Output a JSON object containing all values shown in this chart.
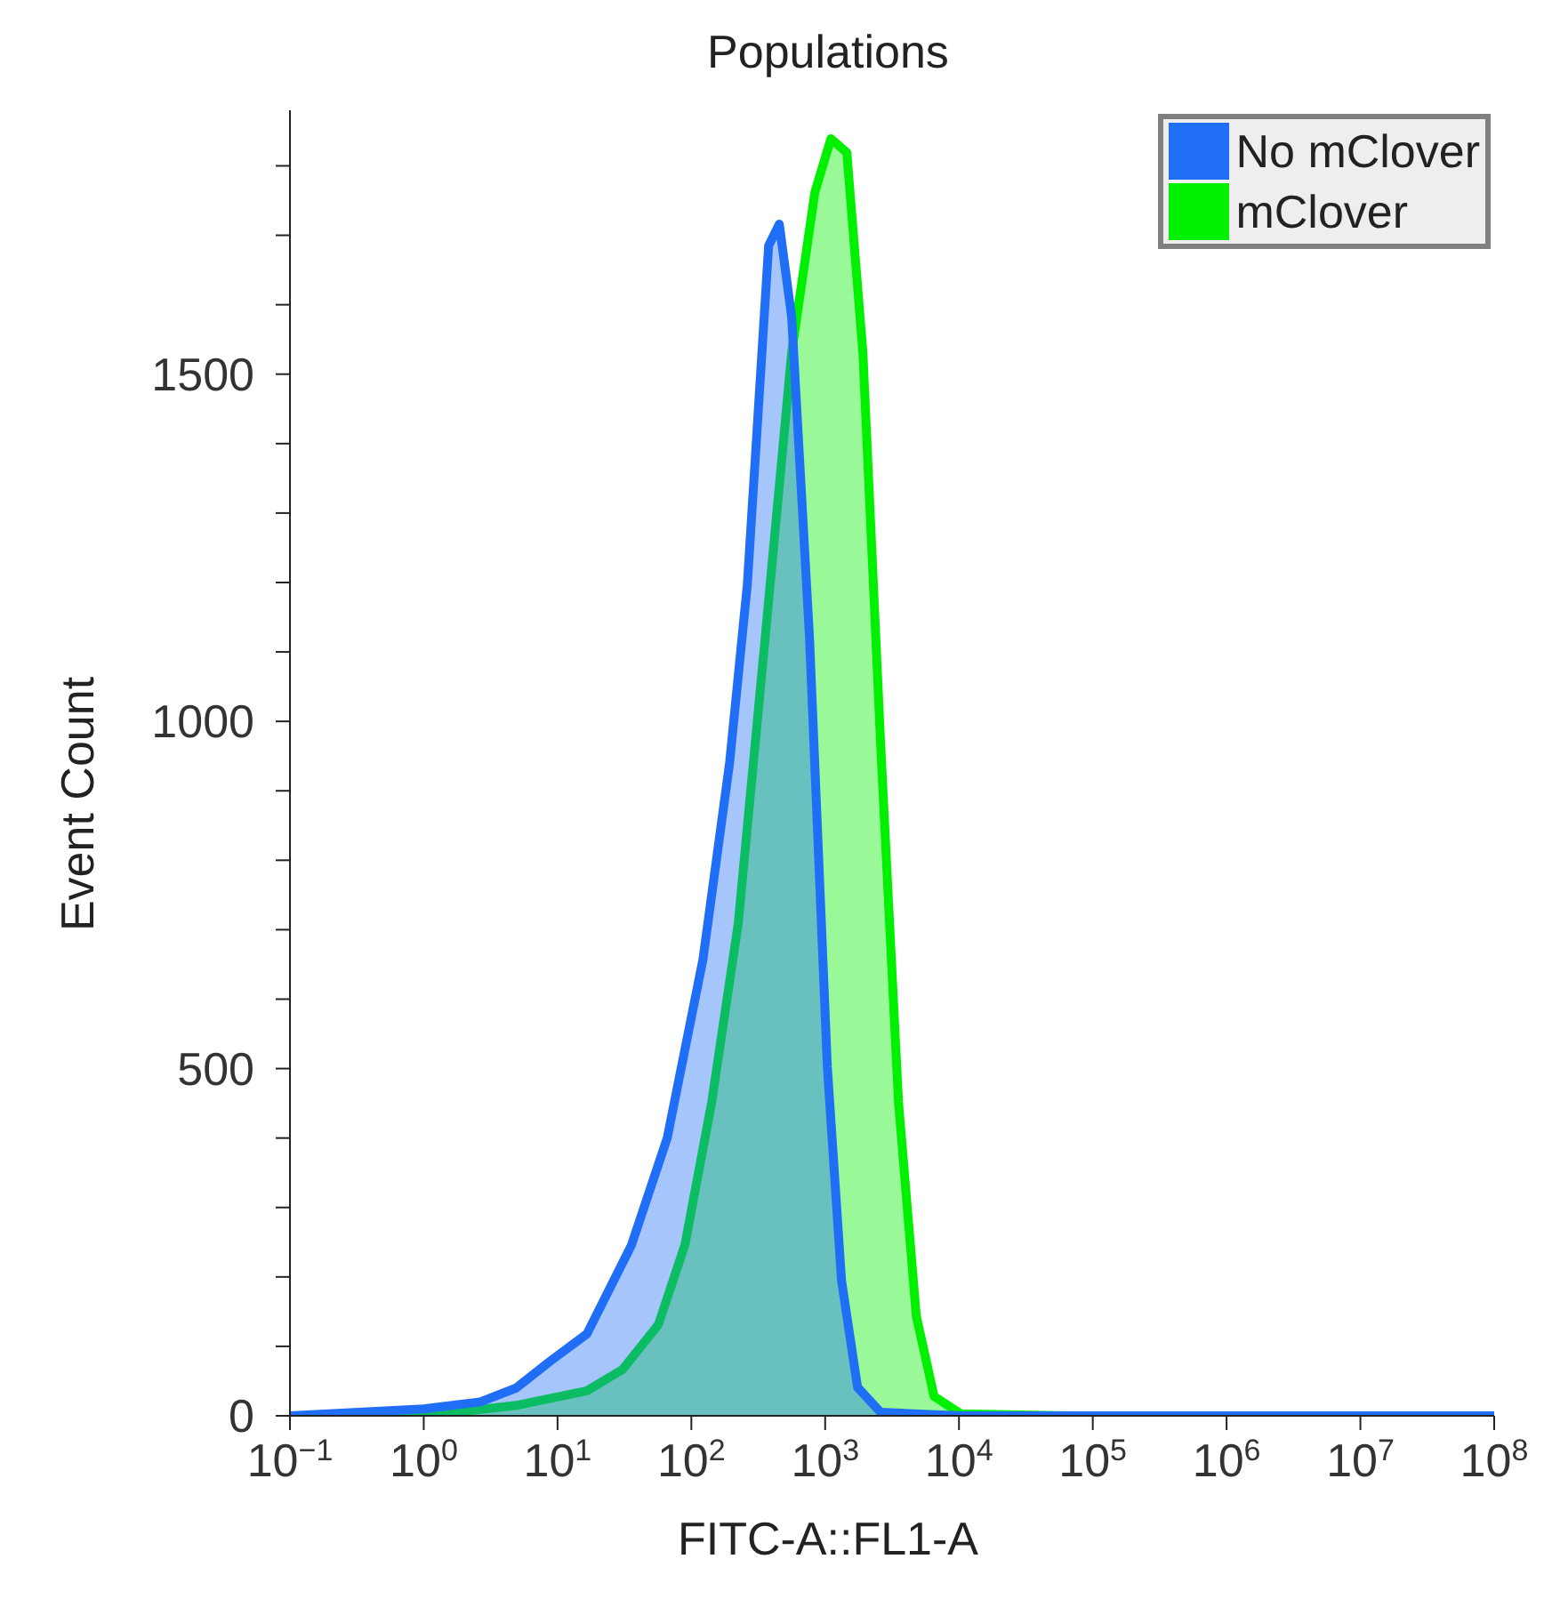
{
  "chart_data": {
    "type": "area",
    "title": "Populations",
    "xlabel": "FITC-A::FL1-A",
    "ylabel": "Event Count",
    "log": "x",
    "legend": "top right",
    "marker": "none",
    "line_style": "solid",
    "xlim": [
      0.1,
      100000000
    ],
    "xticks": [
      {
        "value": 0.1,
        "label": "10$^{−1}$"
      },
      {
        "value": 1,
        "label": "10$^{0}$"
      },
      {
        "value": 10,
        "label": "10$^{1}$"
      },
      {
        "value": 100,
        "label": "10$^{2}$"
      },
      {
        "value": 1000,
        "label": "10$^{3}$"
      },
      {
        "value": 10000,
        "label": "10$^{4}$"
      },
      {
        "value": 100000,
        "label": "10$^{5}$"
      },
      {
        "value": 1000000,
        "label": "10$^{6}$"
      },
      {
        "value": 10000000,
        "label": "10$^{7}$"
      },
      {
        "value": 100000000,
        "label": "10$^{8}$"
      }
    ],
    "ylim": [
      0,
      1880
    ],
    "yticks": [
      0,
      {
        "value": 100,
        "label": null
      },
      {
        "value": 200,
        "label": null
      },
      {
        "value": 300,
        "label": null
      },
      {
        "value": 400,
        "label": null
      },
      500,
      {
        "value": 600,
        "label": null
      },
      {
        "value": 700,
        "label": null
      },
      {
        "value": 800,
        "label": null
      },
      {
        "value": 900,
        "label": null
      },
      1000,
      {
        "value": 1100,
        "label": null
      },
      {
        "value": 1200,
        "label": null
      },
      {
        "value": 1300,
        "label": null
      },
      {
        "value": 1400,
        "label": null
      },
      1500,
      {
        "value": 1600,
        "label": null
      },
      {
        "value": 1700,
        "label": null
      },
      {
        "value": 1800,
        "label": null
      }
    ],
    "series": [
      {
        "name": "No mClover",
        "color": "#1f6ef5",
        "x": [
          0.1,
          1,
          2.65,
          4.9,
          9,
          16.6,
          35.7,
          66,
          122,
          193,
          262,
          378,
          454,
          562,
          764,
          1038,
          1325,
          1746,
          2600,
          10300,
          100000000
        ],
        "values": [
          0,
          10,
          20,
          40,
          80,
          118,
          246,
          400,
          657,
          940,
          1197,
          1685,
          1716,
          1582,
          1120,
          503,
          195,
          41,
          5,
          0,
          0
        ]
      },
      {
        "name": "mClover",
        "color": "#00f000",
        "x": [
          0.1,
          1,
          4.9,
          16.6,
          30.7,
          56.6,
          89.5,
          142,
          224,
          356,
          562,
          838,
          1104,
          1452,
          1914,
          2600,
          3532,
          4797,
          6516,
          10300,
          64700,
          100000000
        ],
        "values": [
          0,
          0,
          15,
          36,
          67,
          131,
          246,
          452,
          709,
          1120,
          1531,
          1762,
          1839,
          1819,
          1531,
          966,
          452,
          144,
          28,
          3,
          0,
          0
        ]
      }
    ]
  }
}
